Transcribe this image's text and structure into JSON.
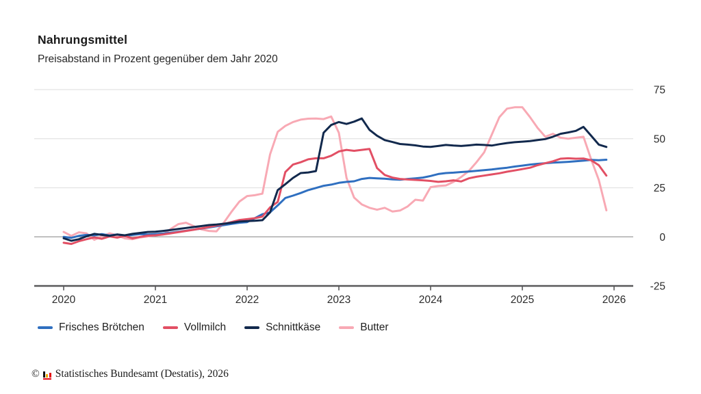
{
  "header": {
    "title": "Nahrungsmittel",
    "subtitle": "Preisabstand in Prozent gegenüber dem Jahr 2020"
  },
  "footer": {
    "copyright_symbol": "©",
    "source_text": "Statistisches Bundesamt (Destatis), 2026",
    "logo_icon": "destatis-bars-icon",
    "logo_colors": {
      "bar1": "#111111",
      "bar2": "#f0ab00",
      "bar3": "#e30613",
      "baseline": "#e30613"
    }
  },
  "chart_data": {
    "type": "line",
    "title": "Nahrungsmittel",
    "subtitle": "Preisabstand in Prozent gegenüber dem Jahr 2020",
    "unit": "Prozent",
    "x_frequency": "monthly",
    "x_start": "2020-01",
    "x_end": "2025-12",
    "x_tick_labels": [
      "2020",
      "2021",
      "2022",
      "2023",
      "2024",
      "2025",
      "2026"
    ],
    "y_ticks": [
      75,
      50,
      25,
      0,
      -25
    ],
    "ylim": [
      -25,
      75
    ],
    "grid": "horizontal",
    "legend_position": "bottom",
    "colors": {
      "gridline": "#e3e3e3",
      "zero_line": "#ababab",
      "axis": "#58585a",
      "label": "#2b2b2b"
    },
    "series": [
      {
        "name": "Frisches Brötchen",
        "color": "#2f6fc0",
        "values": [
          0,
          -0.5,
          0.5,
          1,
          0.8,
          1.4,
          0.7,
          1.2,
          0.5,
          1,
          1.4,
          1.2,
          1.4,
          1.7,
          2.1,
          2.6,
          3.1,
          3.7,
          4.2,
          4.8,
          5.4,
          6,
          6.6,
          7.2,
          7.5,
          9.5,
          11.5,
          12.5,
          16,
          19.8,
          21,
          22.3,
          23.8,
          24.9,
          26,
          26.6,
          27.5,
          28,
          28.3,
          29.5,
          30,
          29.8,
          29.6,
          29.3,
          29.1,
          29.5,
          29.8,
          30.2,
          31,
          32,
          32.5,
          32.7,
          33,
          33.3,
          33.6,
          34,
          34.3,
          34.8,
          35.2,
          35.8,
          36.3,
          36.8,
          37.2,
          37.5,
          37.8,
          38,
          38.2,
          38.5,
          38.8,
          39.2,
          39,
          39.3
        ]
      },
      {
        "name": "Vollmilch",
        "color": "#e24f64",
        "values": [
          -3,
          -3.6,
          -2.2,
          -1.2,
          -0.3,
          -1,
          0.2,
          -0.4,
          0.5,
          -0.8,
          0,
          0.6,
          0.8,
          1.2,
          1.8,
          2.4,
          3,
          3.6,
          4.3,
          5,
          5.8,
          6.6,
          7.6,
          8.6,
          9,
          9.5,
          10.3,
          15,
          17.8,
          33,
          36.8,
          38,
          39.5,
          40,
          40,
          41.3,
          43.5,
          44.3,
          43.8,
          44.3,
          44.8,
          35,
          31.5,
          30.2,
          29.5,
          29.2,
          29,
          28.8,
          28.5,
          28,
          28.3,
          28.8,
          28.2,
          29.8,
          30.6,
          31.2,
          31.8,
          32.4,
          33.2,
          33.8,
          34.5,
          35.2,
          36.5,
          37.5,
          38.5,
          39.8,
          40,
          39.8,
          39.9,
          39,
          36.5,
          31.2
        ]
      },
      {
        "name": "Schnittkäse",
        "color": "#12294d",
        "values": [
          -0.7,
          -2,
          -1.2,
          0.3,
          1.5,
          1,
          0.5,
          1.2,
          0.8,
          1.5,
          2,
          2.5,
          2.6,
          3,
          3.5,
          4,
          4.5,
          5,
          5.5,
          6,
          6.3,
          6.7,
          7.2,
          7.8,
          8,
          8.2,
          8.5,
          12.5,
          23.8,
          26.8,
          30,
          32.5,
          32.8,
          33.5,
          53,
          57,
          58.5,
          57.5,
          58.7,
          60.3,
          54.5,
          51.5,
          49.3,
          48.3,
          47.3,
          47,
          46.6,
          46,
          45.8,
          46.3,
          46.8,
          46.5,
          46.3,
          46.6,
          47,
          46.8,
          46.5,
          47.2,
          47.8,
          48.2,
          48.5,
          48.8,
          49.3,
          49.8,
          51,
          52.5,
          53.2,
          54,
          56,
          51.5,
          47,
          45.8
        ]
      },
      {
        "name": "Butter",
        "color": "#f8a9b4",
        "values": [
          2.5,
          0.5,
          2.3,
          1.8,
          -1.5,
          0.3,
          1.8,
          0.8,
          -0.8,
          -1.2,
          -0.3,
          0.2,
          0.8,
          1.2,
          4,
          6.5,
          7.2,
          5.5,
          3.8,
          3,
          2.8,
          7.5,
          13,
          18,
          20.8,
          21.2,
          22,
          42,
          53.5,
          56.5,
          58.5,
          59.7,
          60.2,
          60.3,
          60,
          61.3,
          53,
          30,
          20,
          16.5,
          14.8,
          13.8,
          14.8,
          12.9,
          13.4,
          15.5,
          18.9,
          18.5,
          25.3,
          25.9,
          26.2,
          28,
          30.5,
          33.5,
          38,
          43,
          52,
          61,
          65.3,
          66,
          66,
          61,
          55.5,
          51,
          52.5,
          50.5,
          50,
          50.5,
          51,
          39.5,
          29,
          13.5
        ]
      }
    ]
  }
}
